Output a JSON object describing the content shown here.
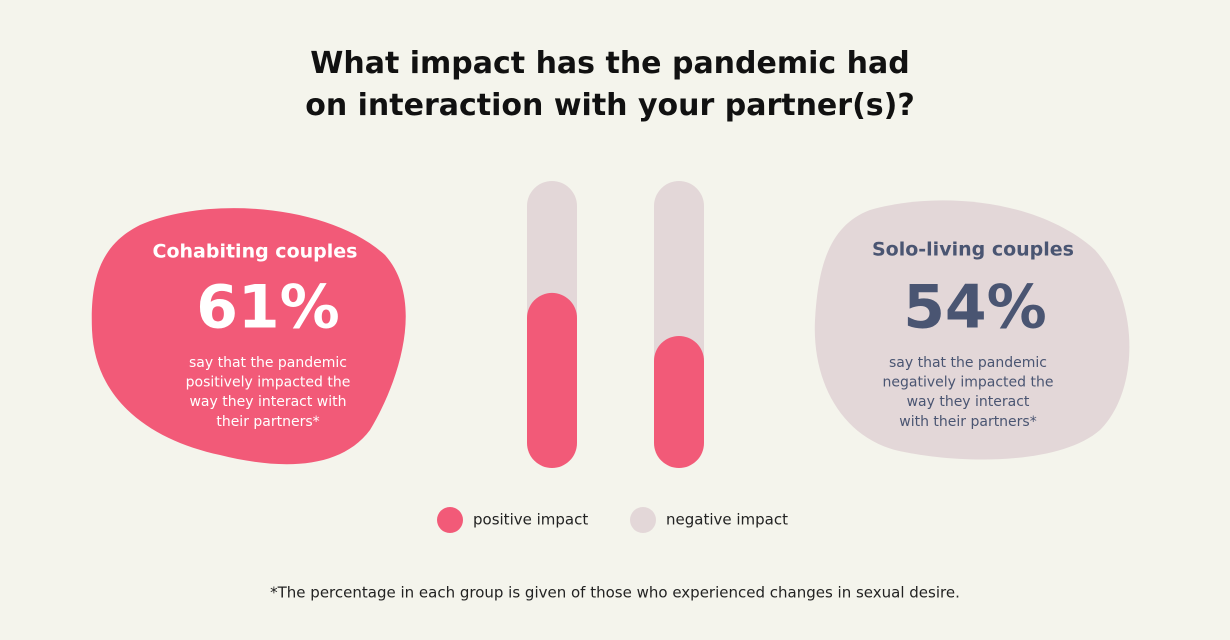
{
  "chart_data": {
    "type": "stacked_bar",
    "title": "What impact has the pandemic had\non interaction with your partner(s)?",
    "categories": [
      null,
      null
    ],
    "series": [
      {
        "name": "positive impact",
        "color": "#f25a78",
        "values": [
          61,
          46
        ],
        "value_labels": [
          "61%",
          null
        ]
      },
      {
        "name": "negative impact",
        "color": "#e3d7d8",
        "values": [
          39,
          54
        ],
        "value_labels": [
          null,
          "54%"
        ]
      }
    ],
    "ylim": [
      0,
      100
    ],
    "callouts": [
      {
        "group": "Cohabiting couples",
        "text": "say that the pandemic\npositively impacted the\nway they interact with\ntheir partners*"
      },
      {
        "group": "Solo-living couples",
        "text": "say that the pandemic\nnegatively impacted the\nway they interact\nwith their partners*"
      }
    ],
    "footnote": "*The percentage in each group is given of those who experienced changes in sexual desire."
  }
}
